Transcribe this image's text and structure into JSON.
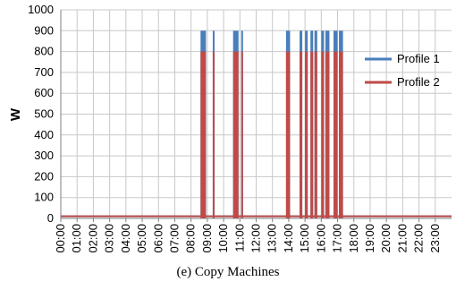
{
  "caption": "(e) Copy Machines",
  "colors": {
    "profile1": "#4a7ebb",
    "profile2": "#be4b48",
    "grid": "#c8c8c8",
    "axis": "#808080"
  },
  "chart_data": {
    "type": "bar",
    "title": "",
    "xlabel": "",
    "ylabel": "W",
    "ylim": [
      0,
      1000
    ],
    "yticks": [
      0,
      100,
      200,
      300,
      400,
      500,
      600,
      700,
      800,
      900,
      1000
    ],
    "xticks": [
      "00:00",
      "01:00",
      "02:00",
      "03:00",
      "04:00",
      "05:00",
      "06:00",
      "07:00",
      "08:00",
      "09:00",
      "10:00",
      "11:00",
      "12:00",
      "13:00",
      "14:00",
      "15:00",
      "16:00",
      "17:00",
      "18:00",
      "19:00",
      "20:00",
      "21:00",
      "22:00",
      "23:00"
    ],
    "baseline_value": 10,
    "grid": true,
    "legend_position": "right",
    "series": [
      {
        "name": "Profile 1",
        "on_value": 900,
        "on_intervals": [
          [
            "08:35",
            "08:55"
          ],
          [
            "09:20",
            "09:25"
          ],
          [
            "10:35",
            "10:55"
          ],
          [
            "11:05",
            "11:10"
          ],
          [
            "13:50",
            "14:05"
          ],
          [
            "14:40",
            "14:50"
          ],
          [
            "15:00",
            "15:10"
          ],
          [
            "15:20",
            "15:30"
          ],
          [
            "15:35",
            "15:45"
          ],
          [
            "16:00",
            "16:10"
          ],
          [
            "16:15",
            "16:30"
          ],
          [
            "16:45",
            "17:00"
          ],
          [
            "17:05",
            "17:20"
          ]
        ]
      },
      {
        "name": "Profile 2",
        "on_value": 800,
        "on_intervals": [
          [
            "08:35",
            "08:55"
          ],
          [
            "09:20",
            "09:25"
          ],
          [
            "10:35",
            "10:55"
          ],
          [
            "11:05",
            "11:10"
          ],
          [
            "13:50",
            "14:05"
          ],
          [
            "14:40",
            "14:50"
          ],
          [
            "15:00",
            "15:10"
          ],
          [
            "15:20",
            "15:30"
          ],
          [
            "15:35",
            "15:45"
          ],
          [
            "16:00",
            "16:10"
          ],
          [
            "16:15",
            "16:30"
          ],
          [
            "16:45",
            "17:00"
          ],
          [
            "17:05",
            "17:20"
          ]
        ]
      }
    ]
  }
}
